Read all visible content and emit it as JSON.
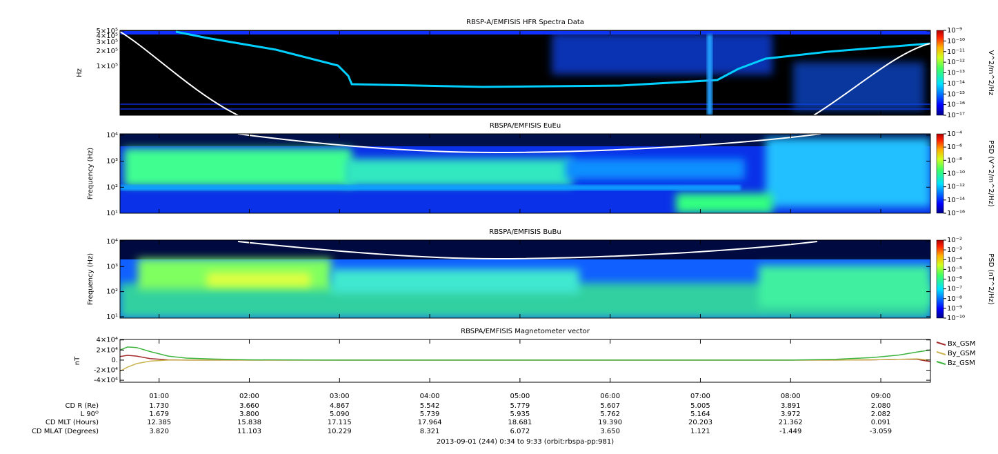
{
  "chart_data": [
    {
      "type": "spectrogram",
      "title": "RBSP-A/EMFISIS  HFR Spectra Data",
      "ylabel": "Hz",
      "log_scale": true,
      "ylim": [
        10700,
        515000
      ],
      "yticks": [
        {
          "value": 500000,
          "label": "5×10⁵"
        },
        {
          "value": 400000,
          "label": "4×10⁵"
        },
        {
          "value": 300000,
          "label": "3×10⁵"
        },
        {
          "value": 200000,
          "label": "2×10⁵"
        },
        {
          "value": 100000,
          "label": "1×10⁵"
        }
      ],
      "colorbar": {
        "label": "V^2/m^2/Hz",
        "lim": [
          1e-17,
          1e-09
        ],
        "ticks": [
          {
            "value": 1e-09,
            "label": "10⁻⁹"
          },
          {
            "value": 1e-10,
            "label": "10⁻¹⁰"
          },
          {
            "value": 1e-11,
            "label": "10⁻¹¹"
          },
          {
            "value": 1e-12,
            "label": "10⁻¹²"
          },
          {
            "value": 1e-13,
            "label": "10⁻¹³"
          },
          {
            "value": 1e-14,
            "label": "10⁻¹⁴"
          },
          {
            "value": 1e-15,
            "label": "10⁻¹⁵"
          },
          {
            "value": 1e-16,
            "label": "10⁻¹⁶"
          },
          {
            "value": 1e-17,
            "label": "10⁻¹⁷"
          }
        ]
      }
    },
    {
      "type": "spectrogram",
      "title": "RBSPA/EMFISIS  EuEu",
      "ylabel": "Frequency (Hz)",
      "log_scale": true,
      "ylim": [
        10,
        11300
      ],
      "yticks": [
        {
          "value": 10000,
          "label": "10⁴"
        },
        {
          "value": 1000,
          "label": "10³"
        },
        {
          "value": 100,
          "label": "10²"
        },
        {
          "value": 10,
          "label": "10¹"
        }
      ],
      "colorbar": {
        "label": "PSD (V^2/m^2/Hz)",
        "lim": [
          1e-16,
          0.0001
        ],
        "ticks": [
          {
            "value": 0.0001,
            "label": "10⁻⁴"
          },
          {
            "value": 1e-06,
            "label": "10⁻⁶"
          },
          {
            "value": 1e-08,
            "label": "10⁻⁸"
          },
          {
            "value": 1e-10,
            "label": "10⁻¹⁰"
          },
          {
            "value": 1e-12,
            "label": "10⁻¹²"
          },
          {
            "value": 1e-14,
            "label": "10⁻¹⁴"
          },
          {
            "value": 1e-16,
            "label": "10⁻¹⁶"
          }
        ]
      }
    },
    {
      "type": "spectrogram",
      "title": "RBSPA/EMFISIS  BuBu",
      "ylabel": "Frequency (Hz)",
      "log_scale": true,
      "ylim": [
        8.8,
        11300
      ],
      "yticks": [
        {
          "value": 10000,
          "label": "10⁴"
        },
        {
          "value": 1000,
          "label": "10³"
        },
        {
          "value": 100,
          "label": "10²"
        },
        {
          "value": 10,
          "label": "10¹"
        }
      ],
      "colorbar": {
        "label": "PSD (nT^2/Hz)",
        "lim": [
          1e-10,
          0.01
        ],
        "ticks": [
          {
            "value": 0.01,
            "label": "10⁻²"
          },
          {
            "value": 0.001,
            "label": "10⁻³"
          },
          {
            "value": 0.0001,
            "label": "10⁻⁴"
          },
          {
            "value": 1e-05,
            "label": "10⁻⁵"
          },
          {
            "value": 1e-06,
            "label": "10⁻⁶"
          },
          {
            "value": 1e-07,
            "label": "10⁻⁷"
          },
          {
            "value": 1e-08,
            "label": "10⁻⁸"
          },
          {
            "value": 1e-09,
            "label": "10⁻⁹"
          },
          {
            "value": 1e-10,
            "label": "10⁻¹⁰"
          }
        ]
      }
    },
    {
      "type": "line",
      "title": "RBSPA/EMFISIS  Magnetometer vector",
      "ylabel": "nT",
      "ylim": [
        -44000,
        41000
      ],
      "yticks": [
        {
          "value": 40000,
          "label": "4×10⁴"
        },
        {
          "value": 20000,
          "label": "2×10⁴"
        },
        {
          "value": 0,
          "label": "0."
        },
        {
          "value": -20000,
          "label": "-2×10⁴"
        },
        {
          "value": -40000,
          "label": "-4×10⁴"
        }
      ],
      "xlim": [
        0.5667,
        9.55
      ],
      "xticks": [
        {
          "value": 1,
          "label": "01:00"
        },
        {
          "value": 2,
          "label": "02:00"
        },
        {
          "value": 3,
          "label": "03:00"
        },
        {
          "value": 4,
          "label": "04:00"
        },
        {
          "value": 5,
          "label": "05:00"
        },
        {
          "value": 6,
          "label": "06:00"
        },
        {
          "value": 7,
          "label": "07:00"
        },
        {
          "value": 8,
          "label": "08:00"
        },
        {
          "value": 9,
          "label": "09:00"
        }
      ],
      "x": [
        0.5667,
        0.65,
        0.75,
        0.9,
        1.1,
        1.3,
        1.6,
        2,
        3,
        4,
        5,
        6,
        7,
        8,
        8.5,
        8.9,
        9.2,
        9.4,
        9.55
      ],
      "series": [
        {
          "name": "Bx_GSM",
          "color": "#a52a2a",
          "values": [
            7000,
            9500,
            8000,
            3000,
            500,
            0,
            0,
            0,
            0,
            0,
            0,
            0,
            0,
            0,
            0,
            500,
            1500,
            1500,
            -3000
          ]
        },
        {
          "name": "By_GSM",
          "color": "#c8b450",
          "values": [
            -22000,
            -14000,
            -7000,
            -2000,
            0,
            0,
            0,
            0,
            0,
            0,
            0,
            0,
            0,
            0,
            0,
            500,
            1500,
            2500,
            0
          ]
        },
        {
          "name": "Bz_GSM",
          "color": "#3cb43c",
          "values": [
            20000,
            26000,
            25000,
            17000,
            8000,
            4000,
            2000,
            500,
            0,
            0,
            0,
            0,
            0,
            0,
            1500,
            5000,
            10000,
            16000,
            20000
          ]
        }
      ]
    }
  ],
  "ephemeris": [
    {
      "label": "CD R (Re)",
      "values": [
        "1.730",
        "3.660",
        "4.867",
        "5.542",
        "5.779",
        "5.607",
        "5.005",
        "3.891",
        "2.080"
      ]
    },
    {
      "label": "L 90ᴼ",
      "values": [
        "1.679",
        "3.800",
        "5.090",
        "5.739",
        "5.935",
        "5.762",
        "5.164",
        "3.972",
        "2.082"
      ]
    },
    {
      "label": "CD MLT (Hours)",
      "values": [
        "12.385",
        "15.838",
        "17.115",
        "17.964",
        "18.681",
        "19.390",
        "20.203",
        "21.362",
        "0.091"
      ]
    },
    {
      "label": "CD MLAT (Degrees)",
      "values": [
        "3.820",
        "11.103",
        "10.229",
        "8.321",
        "6.072",
        "3.650",
        "1.121",
        "-1.449",
        "-3.059"
      ]
    }
  ],
  "footer": "2013-09-01 (244) 0:34 to 9:33 (orbit:rbspa-pp:981)"
}
